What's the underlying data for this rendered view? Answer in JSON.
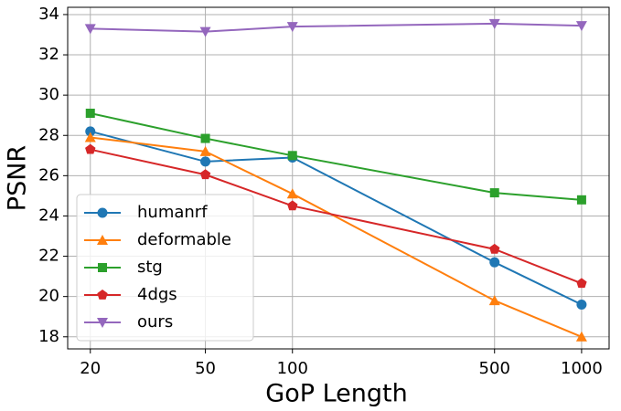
{
  "chart_data": {
    "type": "line",
    "x_label": "GoP Length",
    "y_label": "PSNR",
    "x": [
      20,
      50,
      100,
      500,
      1000
    ],
    "xlim": [
      16.7,
      1245
    ],
    "xticks": [
      20,
      50,
      100,
      500,
      1000
    ],
    "xscale": "log",
    "ylim": [
      17.4,
      34.36
    ],
    "yticks": [
      18,
      20,
      22,
      24,
      26,
      28,
      30,
      32,
      34
    ],
    "grid": true,
    "legend_loc": "lower left",
    "series": [
      {
        "name": "humanrf",
        "color": "#1f77b4",
        "marker": "circle",
        "values": [
          28.2,
          26.7,
          26.9,
          21.7,
          19.6
        ]
      },
      {
        "name": "deformable",
        "color": "#ff7f0e",
        "marker": "triangle-up",
        "values": [
          27.9,
          27.2,
          25.1,
          19.8,
          18.0
        ]
      },
      {
        "name": "stg",
        "color": "#2ca02c",
        "marker": "square",
        "values": [
          29.1,
          27.85,
          27.0,
          25.15,
          24.8
        ]
      },
      {
        "name": "4dgs",
        "color": "#d62728",
        "marker": "pentagon",
        "values": [
          27.3,
          26.05,
          24.5,
          22.35,
          20.65
        ]
      },
      {
        "name": "ours",
        "color": "#9467bd",
        "marker": "triangle-down",
        "values": [
          33.3,
          33.15,
          33.4,
          33.55,
          33.45
        ]
      }
    ]
  }
}
